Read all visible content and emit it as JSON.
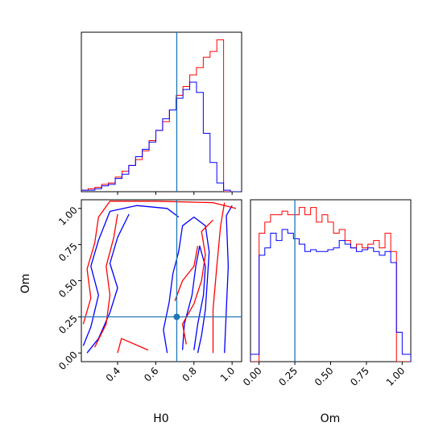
{
  "chart_data": [
    {
      "type": "histogram",
      "panel": "H0 marginal",
      "xlim": [
        0.21,
        1.05
      ],
      "x_edges": [
        0.21,
        0.2455,
        0.281,
        0.3165,
        0.352,
        0.3875,
        0.423,
        0.4585,
        0.494,
        0.5295,
        0.565,
        0.6005,
        0.636,
        0.6715,
        0.707,
        0.7425,
        0.778,
        0.8135,
        0.849,
        0.8845,
        0.92,
        0.9555,
        0.991,
        1.0265,
        1.05
      ],
      "truth": 0.71,
      "series": [
        {
          "color": "#ff0000",
          "values": [
            1,
            2,
            3,
            5,
            6,
            10,
            14,
            18,
            22,
            28,
            35,
            42,
            48,
            56,
            66,
            72,
            80,
            85,
            92,
            96,
            104,
            0,
            0,
            0
          ]
        },
        {
          "color": "#0000ff",
          "values": [
            1,
            1,
            2,
            4,
            5,
            9,
            12,
            18,
            24,
            29,
            34,
            42,
            50,
            56,
            64,
            70,
            75,
            68,
            40,
            20,
            6,
            1,
            0,
            0
          ]
        }
      ],
      "xticks": [
        "0.4",
        "0.6",
        "0.8",
        "1.0"
      ]
    },
    {
      "type": "histogram",
      "panel": "Om marginal",
      "xlabel": "Om",
      "xlim": [
        -0.06,
        1.06
      ],
      "x_edges": [
        -0.06,
        0.0,
        0.04,
        0.08,
        0.12,
        0.16,
        0.2,
        0.24,
        0.28,
        0.32,
        0.36,
        0.4,
        0.44,
        0.48,
        0.52,
        0.56,
        0.6,
        0.64,
        0.68,
        0.72,
        0.76,
        0.8,
        0.84,
        0.88,
        0.92,
        0.96,
        1.0,
        1.06
      ],
      "truth": 0.25,
      "series": [
        {
          "color": "#ff0000",
          "values": [
            0,
            70,
            76,
            80,
            80,
            82,
            80,
            80,
            84,
            80,
            84,
            76,
            80,
            76,
            70,
            72,
            66,
            62,
            64,
            62,
            64,
            66,
            62,
            70,
            60,
            0,
            0
          ]
        },
        {
          "color": "#0000ff",
          "values": [
            4,
            58,
            62,
            70,
            66,
            72,
            70,
            67,
            64,
            60,
            61,
            60,
            60,
            61,
            62,
            66,
            64,
            62,
            60,
            61,
            62,
            60,
            58,
            60,
            54,
            16,
            4
          ]
        }
      ],
      "xticks": [
        "0.00",
        "0.25",
        "0.50",
        "0.75",
        "1.00"
      ]
    },
    {
      "type": "contour",
      "panel": "H0 vs Om joint",
      "xlabel": "H0",
      "ylabel": "Om",
      "xlim": [
        0.21,
        1.05
      ],
      "ylim": [
        -0.06,
        1.06
      ],
      "truth": {
        "x": 0.71,
        "y": 0.25
      },
      "xticks": [
        "0.4",
        "0.6",
        "0.8",
        "1.0"
      ],
      "yticks": [
        "0.00",
        "0.25",
        "0.50",
        "0.75",
        "1.00"
      ],
      "series": [
        {
          "color": "#0000ff",
          "contours": [
            [
              [
                0.66,
                0.0
              ],
              [
                0.64,
                0.16
              ],
              [
                0.67,
                0.35
              ],
              [
                0.69,
                0.55
              ],
              [
                0.72,
                0.7
              ],
              [
                0.74,
                0.88
              ],
              [
                0.8,
                0.94
              ],
              [
                0.86,
                0.88
              ],
              [
                0.88,
                0.7
              ],
              [
                0.87,
                0.5
              ],
              [
                0.86,
                0.3
              ],
              [
                0.84,
                0.12
              ],
              [
                0.82,
                0.0
              ]
            ],
            [
              [
                0.74,
                0.02
              ],
              [
                0.75,
                0.2
              ],
              [
                0.79,
                0.4
              ],
              [
                0.81,
                0.6
              ],
              [
                0.83,
                0.74
              ],
              [
                0.86,
                0.6
              ],
              [
                0.85,
                0.4
              ],
              [
                0.82,
                0.2
              ],
              [
                0.8,
                0.02
              ]
            ],
            [
              [
                0.22,
                0.05
              ],
              [
                0.26,
                0.18
              ],
              [
                0.3,
                0.4
              ],
              [
                0.26,
                0.6
              ],
              [
                0.3,
                0.78
              ],
              [
                0.36,
                0.98
              ],
              [
                0.5,
                1.02
              ],
              [
                0.66,
                1.0
              ],
              [
                0.72,
                0.94
              ]
            ],
            [
              [
                0.24,
                0.0
              ],
              [
                0.3,
                0.1
              ],
              [
                0.36,
                0.28
              ],
              [
                0.4,
                0.45
              ],
              [
                0.36,
                0.62
              ],
              [
                0.4,
                0.8
              ],
              [
                0.46,
                0.96
              ]
            ],
            [
              [
                0.96,
                0.0
              ],
              [
                0.97,
                0.3
              ],
              [
                0.98,
                0.6
              ],
              [
                0.97,
                0.95
              ],
              [
                1.0,
                1.02
              ]
            ]
          ]
        },
        {
          "color": "#ff0000",
          "contours": [
            [
              [
                0.22,
                0.2
              ],
              [
                0.26,
                0.38
              ],
              [
                0.24,
                0.58
              ],
              [
                0.28,
                0.76
              ],
              [
                0.3,
                0.94
              ],
              [
                0.36,
                1.05
              ],
              [
                0.6,
                1.05
              ],
              [
                0.9,
                1.04
              ],
              [
                1.02,
                1.0
              ]
            ],
            [
              [
                0.28,
                0.04
              ],
              [
                0.34,
                0.2
              ],
              [
                0.36,
                0.4
              ],
              [
                0.34,
                0.6
              ],
              [
                0.38,
                0.8
              ],
              [
                0.4,
                0.96
              ]
            ],
            [
              [
                0.4,
                0.0
              ],
              [
                0.42,
                0.1
              ],
              [
                0.56,
                0.02
              ]
            ],
            [
              [
                0.9,
                0.0
              ],
              [
                0.9,
                0.3
              ],
              [
                0.92,
                0.6
              ],
              [
                0.94,
                0.88
              ],
              [
                0.96,
                1.04
              ]
            ],
            [
              [
                0.76,
                0.06
              ],
              [
                0.74,
                0.2
              ],
              [
                0.8,
                0.34
              ],
              [
                0.84,
                0.5
              ],
              [
                0.86,
                0.68
              ],
              [
                0.84,
                0.84
              ],
              [
                0.9,
                0.92
              ]
            ],
            [
              [
                0.7,
                0.36
              ],
              [
                0.74,
                0.5
              ],
              [
                0.8,
                0.6
              ],
              [
                0.82,
                0.74
              ]
            ]
          ]
        }
      ]
    }
  ]
}
